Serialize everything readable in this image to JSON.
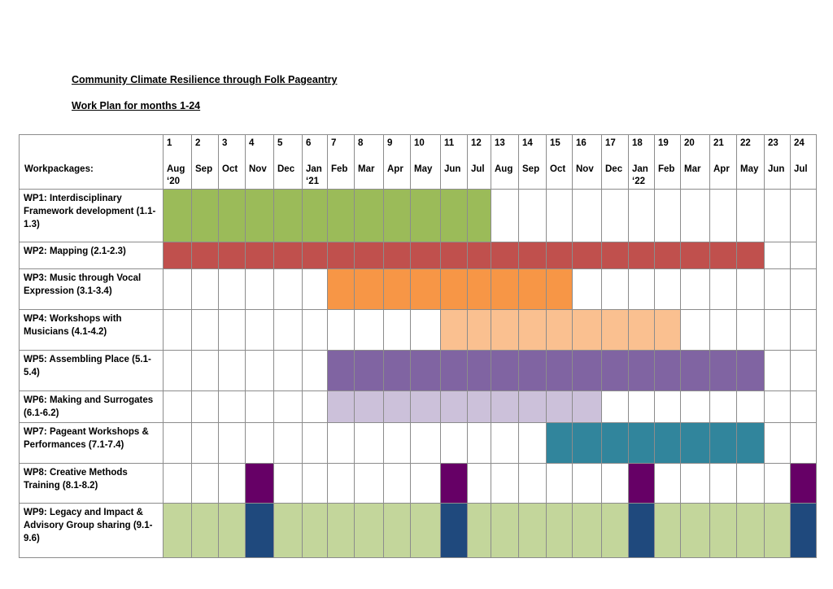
{
  "title": "Community Climate Resilience through Folk Pageantry",
  "subtitle": "Work Plan for months 1-24",
  "header_label": "Workpackages:",
  "months": [
    {
      "n": "1",
      "label": "Aug\n‘20"
    },
    {
      "n": "2",
      "label": "Sep"
    },
    {
      "n": "3",
      "label": "Oct"
    },
    {
      "n": "4",
      "label": "Nov"
    },
    {
      "n": "5",
      "label": "Dec"
    },
    {
      "n": "6",
      "label": "Jan\n‘21"
    },
    {
      "n": "7",
      "label": "Feb"
    },
    {
      "n": "8",
      "label": "Mar"
    },
    {
      "n": "9",
      "label": "Apr"
    },
    {
      "n": "10",
      "label": "May"
    },
    {
      "n": "11",
      "label": "Jun"
    },
    {
      "n": "12",
      "label": "Jul"
    },
    {
      "n": "13",
      "label": "Aug"
    },
    {
      "n": "14",
      "label": "Sep"
    },
    {
      "n": "15",
      "label": "Oct"
    },
    {
      "n": "16",
      "label": "Nov"
    },
    {
      "n": "17",
      "label": "Dec"
    },
    {
      "n": "18",
      "label": "Jan\n‘22"
    },
    {
      "n": "19",
      "label": "Feb"
    },
    {
      "n": "20",
      "label": "Mar"
    },
    {
      "n": "21",
      "label": "Apr"
    },
    {
      "n": "22",
      "label": "May"
    },
    {
      "n": "23",
      "label": "Jun"
    },
    {
      "n": "24",
      "label": "Jul"
    }
  ],
  "workpackages": [
    {
      "label": "WP1:  Interdisciplinary Framework development (1.1-1.3)",
      "segments": [
        {
          "start": 1,
          "end": 12,
          "color": "#9bbb59"
        }
      ]
    },
    {
      "label": "WP2: Mapping (2.1-2.3)",
      "segments": [
        {
          "start": 1,
          "end": 22,
          "color": "#c0504d"
        }
      ]
    },
    {
      "label": "WP3: Music through Vocal Expression (3.1-3.4)",
      "segments": [
        {
          "start": 7,
          "end": 15,
          "color": "#f79646"
        }
      ]
    },
    {
      "label": "WP4: Workshops with Musicians (4.1-4.2)",
      "segments": [
        {
          "start": 11,
          "end": 19,
          "color": "#fac090"
        }
      ]
    },
    {
      "label": "WP5: Assembling Place (5.1-5.4)",
      "segments": [
        {
          "start": 7,
          "end": 22,
          "color": "#8064a2"
        }
      ]
    },
    {
      "label": "WP6: Making and Surrogates (6.1-6.2)",
      "segments": [
        {
          "start": 7,
          "end": 16,
          "color": "#ccc1da"
        }
      ]
    },
    {
      "label": "WP7: Pageant Workshops & Performances (7.1-7.4)",
      "segments": [
        {
          "start": 15,
          "end": 22,
          "color": "#31859c"
        }
      ]
    },
    {
      "label": "WP8: Creative Methods Training (8.1-8.2)",
      "segments": [
        {
          "start": 4,
          "end": 4,
          "color": "#660066"
        },
        {
          "start": 11,
          "end": 11,
          "color": "#660066"
        },
        {
          "start": 18,
          "end": 18,
          "color": "#660066"
        },
        {
          "start": 24,
          "end": 24,
          "color": "#660066"
        }
      ]
    },
    {
      "label": "WP9: Legacy and Impact & Advisory Group sharing (9.1-9.6)",
      "segments": [
        {
          "start": 1,
          "end": 24,
          "color": "#c3d69b"
        },
        {
          "start": 4,
          "end": 4,
          "color": "#1f497d"
        },
        {
          "start": 11,
          "end": 11,
          "color": "#1f497d"
        },
        {
          "start": 18,
          "end": 18,
          "color": "#1f497d"
        },
        {
          "start": 24,
          "end": 24,
          "color": "#1f497d"
        }
      ]
    }
  ]
}
